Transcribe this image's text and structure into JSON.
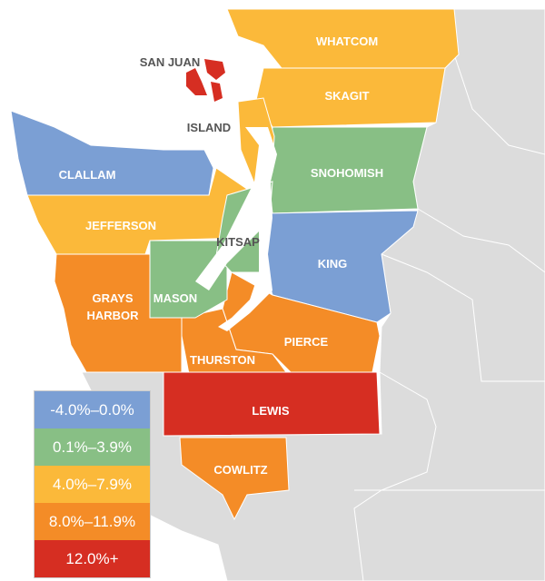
{
  "colors": {
    "decline": "#7b9fd4",
    "low": "#88bf85",
    "mid": "#fbb93a",
    "high": "#f48c27",
    "top": "#d62e22",
    "other": "#dcdcdc"
  },
  "counties": {
    "whatcom": "WHATCOM",
    "skagit": "SKAGIT",
    "san_juan": "SAN JUAN",
    "island": "ISLAND",
    "clallam": "CLALLAM",
    "snohomish": "SNOHOMISH",
    "jefferson": "JEFFERSON",
    "kitsap": "KITSAP",
    "king": "KING",
    "grays_harbor_1": "GRAYS",
    "grays_harbor_2": "HARBOR",
    "mason": "MASON",
    "pierce": "PIERCE",
    "thurston": "THURSTON",
    "lewis": "LEWIS",
    "cowlitz": "COWLITZ"
  },
  "legend": [
    "-4.0%–0.0%",
    "0.1%–3.9%",
    "4.0%–7.9%",
    "8.0%–11.9%",
    "12.0%+"
  ]
}
